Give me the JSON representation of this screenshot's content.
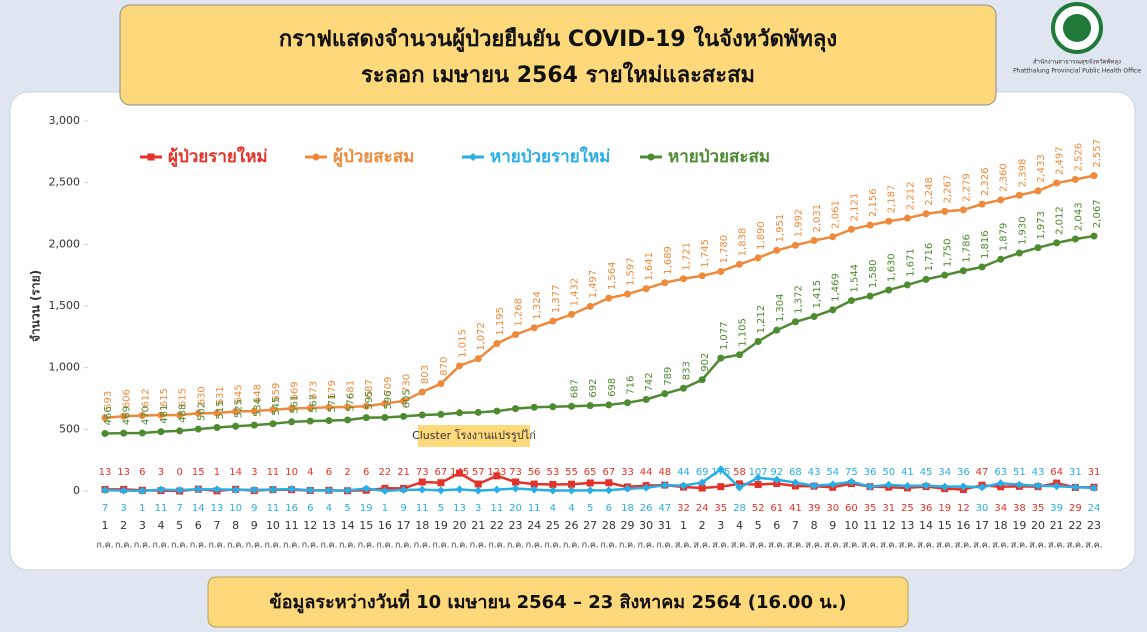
{
  "chart_data": {
    "type": "line",
    "title": "กราฟแสดงจำนวนผู้ป่วยยืนยัน COVID-19 ในจังหวัดพัทลุง",
    "subtitle": "ระลอก เมษายน 2564 รายใหม่และสะสม",
    "note": "ข้อมูลระหว่างวันที่ 10 เมษายน 2564 – 23 สิงหาคม 2564 (16.00 น.)",
    "logo_text": [
      "สำนักงานสาธารณสุขจังหวัดพัทลุง",
      "Phatthalung Provincial Public Health Office"
    ],
    "y_label": "จำนวน (ราย)",
    "annotation": "Cluster โรงงานแปรรูปไก่",
    "categories": [
      "1",
      "2",
      "3",
      "4",
      "5",
      "6",
      "7",
      "8",
      "9",
      "10",
      "11",
      "12",
      "13",
      "14",
      "15",
      "16",
      "17",
      "18",
      "19",
      "20",
      "21",
      "22",
      "23",
      "24",
      "25",
      "26",
      "27",
      "28",
      "29",
      "30",
      "31",
      "1",
      "2",
      "3",
      "4",
      "5",
      "6",
      "7",
      "8",
      "9",
      "10",
      "11",
      "12",
      "13",
      "14",
      "15",
      "16",
      "17",
      "18",
      "19",
      "20",
      "21",
      "22",
      "23"
    ],
    "x_sublabels": [
      "ก.ค.",
      "ก.ค.",
      "ก.ค.",
      "ก.ค.",
      "ก.ค.",
      "ก.ค.",
      "ก.ค.",
      "ก.ค.",
      "ก.ค.",
      "ก.ค.",
      "ก.ค.",
      "ก.ค.",
      "ก.ค.",
      "ก.ค.",
      "ก.ค.",
      "ก.ค.",
      "ก.ค.",
      "ก.ค.",
      "ก.ค.",
      "ก.ค.",
      "ก.ค.",
      "ก.ค.",
      "ก.ค.",
      "ก.ค.",
      "ก.ค.",
      "ก.ค.",
      "ก.ค.",
      "ก.ค.",
      "ก.ค.",
      "ก.ค.",
      "ก.ค.",
      "ส.ค.",
      "ส.ค.",
      "ส.ค.",
      "ส.ค.",
      "ส.ค.",
      "ส.ค.",
      "ส.ค.",
      "ส.ค.",
      "ส.ค.",
      "ส.ค.",
      "ส.ค.",
      "ส.ค.",
      "ส.ค.",
      "ส.ค.",
      "ส.ค.",
      "ส.ค.",
      "ส.ค.",
      "ส.ค.",
      "ส.ค.",
      "ส.ค.",
      "ส.ค.",
      "ส.ค.",
      "ส.ค."
    ],
    "ylim": [
      0,
      3000
    ],
    "yticks": [
      0,
      500,
      {
        "value": 1000,
        "label": "1,000"
      },
      {
        "value": 1500,
        "label": "1,500"
      },
      {
        "value": 2000,
        "label": "2,000"
      },
      {
        "value": 2500,
        "label": "2,500"
      },
      {
        "value": 3000,
        "label": "3,000"
      }
    ],
    "grid": false,
    "legend": "top-left",
    "series": [
      {
        "name": "ผู้ป่วยรายใหม่",
        "color": "#e53228",
        "marker": "square",
        "values": [
          13,
          13,
          6,
          3,
          0,
          15,
          1,
          14,
          3,
          11,
          10,
          4,
          6,
          2,
          6,
          22,
          21,
          73,
          67,
          145,
          57,
          123,
          73,
          56,
          53,
          55,
          65,
          67,
          33,
          44,
          48,
          32,
          24,
          35,
          58,
          52,
          61,
          41,
          39,
          30,
          60,
          35,
          31,
          25,
          36,
          19,
          12,
          47,
          34,
          38,
          35,
          64,
          29,
          31
        ]
      },
      {
        "name": "ผู้ป่วยสะสม",
        "color": "#ef8a3c",
        "marker": "circle",
        "values": [
          593,
          606,
          612,
          615,
          615,
          630,
          631,
          645,
          648,
          659,
          669,
          673,
          679,
          681,
          687,
          709,
          730,
          803,
          870,
          1015,
          1072,
          1195,
          1268,
          1324,
          1377,
          1432,
          1497,
          1564,
          1597,
          1641,
          1689,
          1721,
          1745,
          1780,
          1838,
          1890,
          1951,
          1992,
          2031,
          2061,
          2121,
          2156,
          2187,
          2212,
          2248,
          2267,
          2279,
          2326,
          2360,
          2398,
          2433,
          2497,
          2526,
          2557
        ],
        "value_labels": [
          "593",
          "606",
          "612",
          "615",
          "615",
          "630",
          "631",
          "645",
          "648",
          "659",
          "669",
          "673",
          "679",
          "681",
          "687",
          "709",
          "730",
          "803",
          "870",
          "1,015",
          "1,072",
          "1,195",
          "1,268",
          "1,324",
          "1,377",
          "1,432",
          "1,497",
          "1,564",
          "1,597",
          "1,641",
          "1,689",
          "1,721",
          "1,745",
          "1,780",
          "1,838",
          "1,890",
          "1,951",
          "1,992",
          "2,031",
          "2,061",
          "2,121",
          "2,156",
          "2,187",
          "2,212",
          "2,248",
          "2,267",
          "2,279",
          "2,326",
          "2,360",
          "2,398",
          "2,433",
          "2,497",
          "2,526",
          "2,557"
        ]
      },
      {
        "name": "หายป่วยรายใหม่",
        "color": "#27aee6",
        "marker": "diamond",
        "values": [
          7,
          3,
          1,
          11,
          7,
          14,
          13,
          10,
          9,
          11,
          16,
          6,
          4,
          5,
          19,
          1,
          9,
          11,
          5,
          13,
          3,
          11,
          20,
          11,
          4,
          4,
          5,
          6,
          18,
          26,
          47,
          44,
          69,
          175,
          28,
          107,
          92,
          68,
          43,
          54,
          75,
          36,
          50,
          41,
          45,
          34,
          36,
          30,
          63,
          51,
          43,
          39,
          31,
          24
        ]
      },
      {
        "name": "หายป่วยสะสม",
        "color": "#4d8a30",
        "marker": "circle",
        "values": [
          466,
          469,
          470,
          481,
          488,
          502,
          515,
          525,
          534,
          545,
          561,
          567,
          571,
          576,
          595,
          596,
          605,
          616,
          621,
          634,
          637,
          648,
          668,
          679,
          683,
          687,
          692,
          698,
          716,
          742,
          789,
          833,
          902,
          1077,
          1105,
          1212,
          1304,
          1372,
          1415,
          1469,
          1544,
          1580,
          1630,
          1671,
          1716,
          1750,
          1786,
          1816,
          1879,
          1930,
          1973,
          2012,
          2043,
          2067
        ],
        "value_labels": [
          "466",
          "469",
          "470",
          "481",
          "488",
          "502",
          "515",
          "525",
          "534",
          "545",
          "561",
          "567",
          "571",
          "576",
          "595",
          "596",
          "605",
          null,
          null,
          null,
          null,
          null,
          null,
          null,
          null,
          "687",
          "692",
          "698",
          "716",
          "742",
          "789",
          "833",
          "902",
          "1,077",
          "1,105",
          "1,212",
          "1,304",
          "1,372",
          "1,415",
          "1,469",
          "1,544",
          "1,580",
          "1,630",
          "1,671",
          "1,716",
          "1,750",
          "1,786",
          "1,816",
          "1,879",
          "1,930",
          "1,973",
          "2,012",
          "2,043",
          "2,067"
        ]
      }
    ]
  }
}
